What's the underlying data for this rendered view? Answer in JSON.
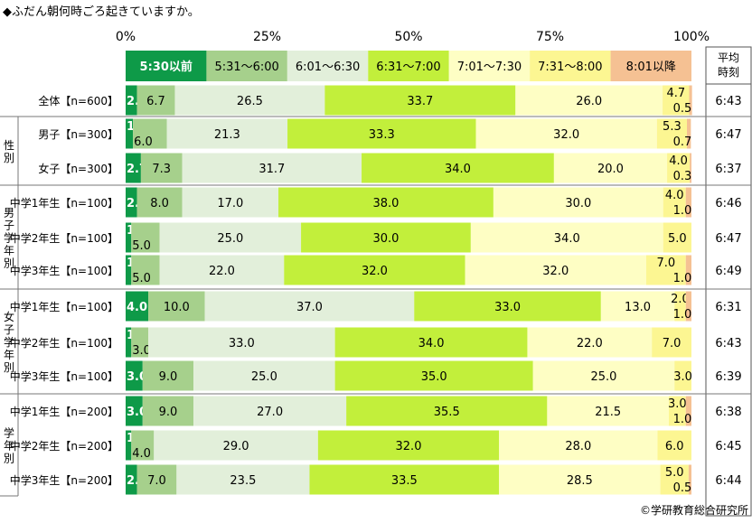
{
  "chart_data": {
    "type": "bar",
    "stacked": true,
    "orientation": "horizontal",
    "title": "◆ふだん朝何時ごろ起きていますか。",
    "xlim": [
      0,
      100
    ],
    "x_ticks": [
      "0%",
      "25%",
      "50%",
      "75%",
      "100%"
    ],
    "avg_header": [
      "平均",
      "時刻"
    ],
    "copyright": "©学研教育総合研究所",
    "legend": [
      {
        "label": "5:30以前",
        "color": "#0e9a48"
      },
      {
        "label": "5:31～6:00",
        "color": "#a6d08c"
      },
      {
        "label": "6:01～6:30",
        "color": "#e2efda"
      },
      {
        "label": "6:31～7:00",
        "color": "#c2ef3b"
      },
      {
        "label": "7:01～7:30",
        "color": "#fefec4"
      },
      {
        "label": "7:31～8:00",
        "color": "#fcf692"
      },
      {
        "label": "8:01以降",
        "color": "#f5c193"
      }
    ],
    "groups": [
      {
        "name": "性別",
        "rows": [
          1,
          2
        ]
      },
      {
        "name": "男子学年別",
        "rows": [
          3,
          4,
          5
        ]
      },
      {
        "name": "女子学年別",
        "rows": [
          6,
          7,
          8
        ]
      },
      {
        "name": "学年別",
        "rows": [
          9,
          10,
          11
        ]
      }
    ],
    "rows": [
      {
        "label": "全体【n=600】",
        "values": [
          2.0,
          6.7,
          26.5,
          33.7,
          26.0,
          4.7,
          0.5
        ],
        "avg": "6:43"
      },
      {
        "label": "男子【n=300】",
        "values": [
          1.3,
          6.0,
          21.3,
          33.3,
          32.0,
          5.3,
          0.7
        ],
        "avg": "6:47"
      },
      {
        "label": "女子【n=300】",
        "values": [
          2.7,
          7.3,
          31.7,
          34.0,
          20.0,
          4.0,
          0.3
        ],
        "avg": "6:37"
      },
      {
        "label": "中学1年生【n=100】",
        "values": [
          2.0,
          8.0,
          17.0,
          38.0,
          30.0,
          4.0,
          1.0
        ],
        "avg": "6:46"
      },
      {
        "label": "中学2年生【n=100】",
        "values": [
          1.0,
          5.0,
          25.0,
          30.0,
          34.0,
          5.0,
          0
        ],
        "avg": "6:47"
      },
      {
        "label": "中学3年生【n=100】",
        "values": [
          1.0,
          5.0,
          22.0,
          32.0,
          32.0,
          7.0,
          1.0
        ],
        "avg": "6:49"
      },
      {
        "label": "中学1年生【n=100】",
        "values": [
          4.0,
          10.0,
          37.0,
          33.0,
          13.0,
          2.0,
          1.0
        ],
        "avg": "6:31"
      },
      {
        "label": "中学2年生【n=100】",
        "values": [
          1.0,
          3.0,
          33.0,
          34.0,
          22.0,
          7.0,
          0
        ],
        "avg": "6:43"
      },
      {
        "label": "中学3年生【n=100】",
        "values": [
          3.0,
          9.0,
          25.0,
          35.0,
          25.0,
          3.0,
          0
        ],
        "avg": "6:39"
      },
      {
        "label": "中学1年生【n=200】",
        "values": [
          3.0,
          9.0,
          27.0,
          35.5,
          21.5,
          3.0,
          1.0
        ],
        "avg": "6:38"
      },
      {
        "label": "中学2年生【n=200】",
        "values": [
          1.0,
          4.0,
          29.0,
          32.0,
          28.0,
          6.0,
          0
        ],
        "avg": "6:45"
      },
      {
        "label": "中学3年生【n=200】",
        "values": [
          2.0,
          7.0,
          23.5,
          33.5,
          28.5,
          5.0,
          0.5
        ],
        "avg": "6:44"
      }
    ]
  }
}
